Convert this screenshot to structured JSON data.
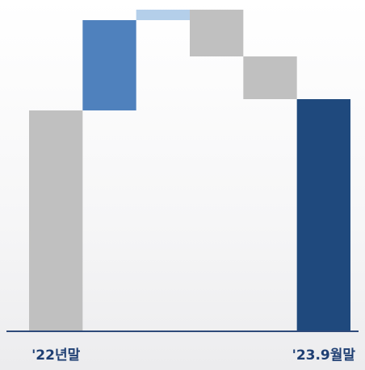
{
  "chart_data": {
    "type": "waterfall",
    "categories": [
      "'22년말",
      null,
      null,
      null,
      null,
      "'23.9월말"
    ],
    "values": [
      273,
      112,
      13,
      -58,
      -53,
      287
    ],
    "measure": [
      "absolute",
      "relative",
      "relative",
      "relative",
      "relative",
      "total"
    ],
    "colors": [
      "#c0c0c0",
      "#4f81bd",
      "#b4cfea",
      "#c0c0c0",
      "#c0c0c0",
      "#1f497d"
    ],
    "ylim": [
      0,
      400
    ]
  }
}
